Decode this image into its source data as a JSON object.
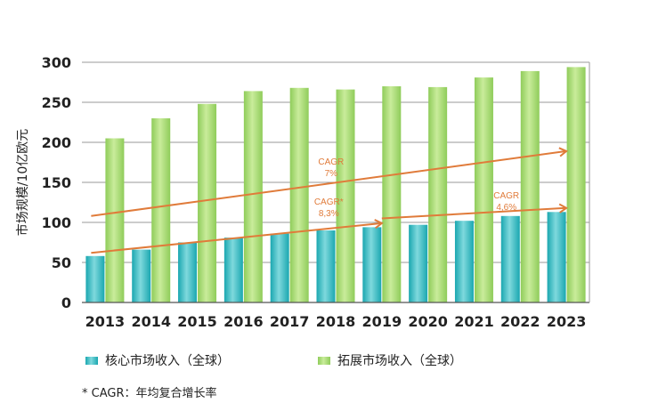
{
  "chart_data": {
    "type": "bar",
    "ylabel": "市场规模/10亿欧元",
    "xlabel": "",
    "ylim": [
      0,
      300
    ],
    "yticks": [
      0,
      50,
      100,
      150,
      200,
      250,
      300
    ],
    "categories": [
      "2013",
      "2014",
      "2015",
      "2016",
      "2017",
      "2018",
      "2019",
      "2020",
      "2021",
      "2022",
      "2023"
    ],
    "series": [
      {
        "name": "核心市场收入（全球）",
        "color": "#1aa7b0",
        "values": [
          58,
          66,
          75,
          81,
          86,
          90,
          94,
          97,
          102,
          108,
          113
        ]
      },
      {
        "name": "拓展市场收入（全球）",
        "color": "#8fcc5a",
        "values": [
          205,
          230,
          248,
          264,
          268,
          266,
          270,
          269,
          281,
          289,
          294
        ]
      }
    ],
    "trend_color": "#e07b3a",
    "trend_lines": [
      {
        "from": [
          -0.3,
          108
        ],
        "to": [
          10.0,
          189
        ]
      },
      {
        "from": [
          -0.3,
          62
        ],
        "to": [
          6.0,
          99
        ]
      },
      {
        "from": [
          6.0,
          105
        ],
        "to": [
          10.0,
          118
        ]
      }
    ],
    "annotations": [
      {
        "lines": [
          "CAGR",
          "7%"
        ],
        "x": 4.9,
        "y": 172
      },
      {
        "lines": [
          "CAGR*",
          "8,3%"
        ],
        "x": 4.85,
        "y": 122
      },
      {
        "lines": [
          "CAGR",
          "4,6%"
        ],
        "x": 8.7,
        "y": 130
      }
    ],
    "legend_position": "bottom",
    "footnote": "* CAGR：年均复合增长率"
  }
}
